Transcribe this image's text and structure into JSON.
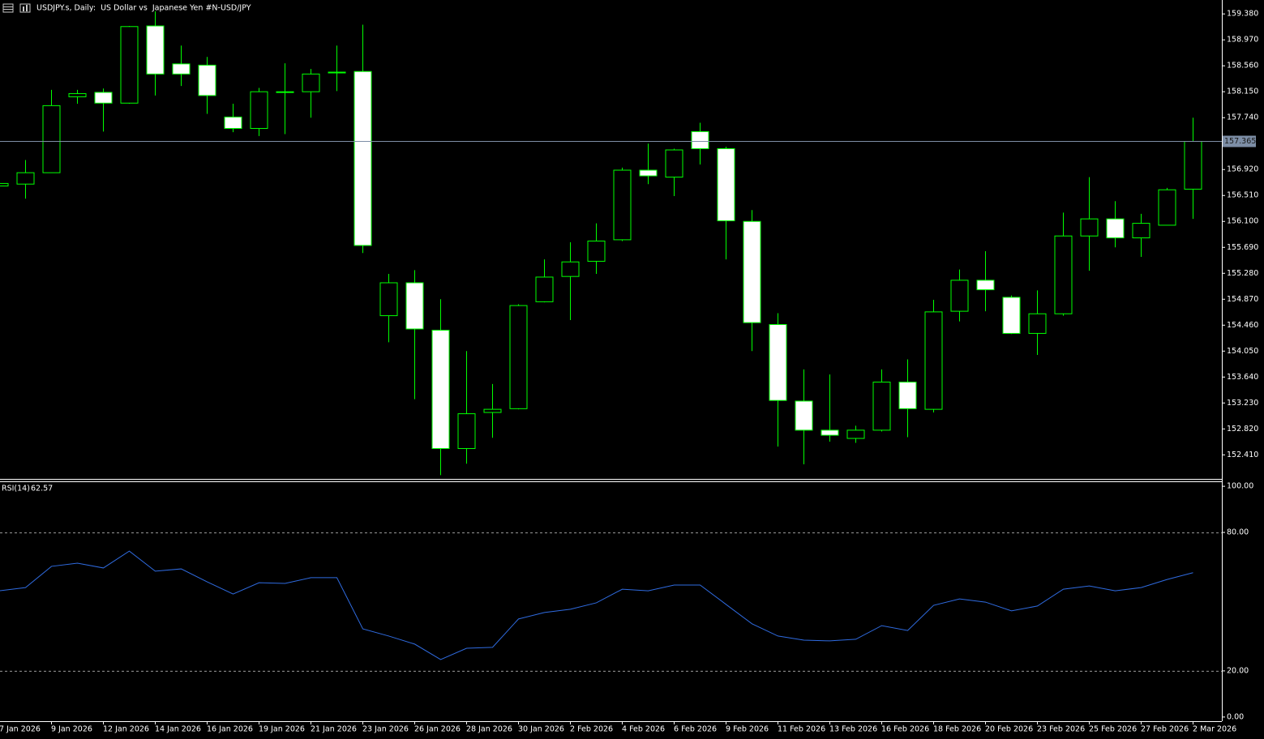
{
  "chart_data": [
    {
      "type": "candlestick",
      "title": "USDJPY.s, Daily:  US Dollar vs  Japanese Yen #N-USD/JPY",
      "open": [
        156.66,
        156.69,
        156.87,
        158.07,
        158.14,
        157.97,
        159.19,
        158.59,
        158.57,
        157.75,
        157.57,
        158.14,
        158.15,
        158.45,
        158.47,
        154.61,
        155.13,
        154.38,
        152.51,
        153.08,
        153.14,
        154.83,
        155.23,
        155.47,
        155.81,
        156.91,
        156.8,
        157.52,
        157.25,
        156.1,
        154.47,
        153.26,
        152.8,
        152.67,
        152.8,
        153.56,
        153.13,
        154.68,
        155.17,
        154.9,
        154.33,
        154.64,
        155.87,
        156.14,
        155.84,
        156.04,
        156.61
      ],
      "high": [
        156.73,
        157.07,
        158.18,
        158.18,
        158.2,
        159.19,
        159.42,
        158.88,
        158.7,
        157.96,
        158.21,
        158.6,
        158.51,
        158.88,
        159.21,
        155.27,
        155.33,
        154.87,
        154.05,
        153.53,
        154.79,
        155.5,
        155.77,
        156.07,
        156.95,
        157.33,
        157.25,
        157.66,
        157.28,
        156.28,
        154.65,
        153.76,
        153.68,
        152.87,
        153.76,
        153.92,
        154.86,
        155.34,
        155.63,
        154.93,
        155.01,
        156.24,
        156.8,
        156.42,
        156.22,
        156.63,
        157.74
      ],
      "low": [
        156.64,
        156.46,
        156.87,
        157.96,
        157.52,
        157.96,
        158.09,
        158.24,
        157.8,
        157.51,
        157.45,
        157.48,
        157.74,
        158.16,
        155.6,
        154.19,
        153.29,
        152.09,
        152.27,
        152.68,
        153.13,
        154.82,
        154.54,
        155.27,
        155.79,
        156.69,
        156.5,
        157.0,
        155.5,
        154.05,
        152.54,
        152.26,
        152.62,
        152.6,
        152.78,
        152.69,
        153.08,
        154.52,
        154.68,
        154.32,
        153.99,
        154.61,
        155.32,
        155.69,
        155.54,
        156.04,
        156.14
      ],
      "close": [
        156.7,
        156.87,
        157.93,
        158.12,
        157.97,
        159.18,
        158.43,
        158.43,
        158.09,
        157.57,
        158.15,
        158.15,
        158.43,
        158.46,
        155.72,
        155.13,
        154.4,
        152.51,
        153.06,
        153.13,
        154.77,
        155.22,
        155.46,
        155.79,
        156.91,
        156.82,
        157.23,
        157.25,
        156.11,
        154.5,
        153.27,
        152.8,
        152.72,
        152.8,
        153.56,
        153.14,
        154.67,
        155.17,
        155.02,
        154.33,
        154.64,
        155.87,
        156.14,
        155.84,
        156.07,
        156.6,
        157.365
      ],
      "up_color": "#000000",
      "down_color": "#ffffff",
      "outline_color": "#00ff00",
      "current_price": 157.365,
      "price_line_color": "#7d8ea6",
      "ylim": [
        152.03,
        159.6
      ],
      "yticks": [
        {
          "value": 159.38,
          "label": "159.380"
        },
        {
          "value": 158.97,
          "label": "158.970"
        },
        {
          "value": 158.56,
          "label": "158.560"
        },
        {
          "value": 158.15,
          "label": "158.150"
        },
        {
          "value": 157.74,
          "label": "157.740"
        },
        {
          "value": 156.92,
          "label": "156.920"
        },
        {
          "value": 156.51,
          "label": "156.510"
        },
        {
          "value": 156.1,
          "label": "156.100"
        },
        {
          "value": 155.69,
          "label": "155.690"
        },
        {
          "value": 155.28,
          "label": "155.280"
        },
        {
          "value": 154.87,
          "label": "154.870"
        },
        {
          "value": 154.46,
          "label": "154.460"
        },
        {
          "value": 154.05,
          "label": "154.050"
        },
        {
          "value": 153.64,
          "label": "153.640"
        },
        {
          "value": 153.23,
          "label": "153.230"
        },
        {
          "value": 152.82,
          "label": "152.820"
        },
        {
          "value": 152.41,
          "label": "152.410"
        }
      ]
    },
    {
      "type": "line",
      "categories": [
        "7 Jan 2026",
        null,
        "9 Jan 2026",
        null,
        "12 Jan 2026",
        null,
        "14 Jan 2026",
        null,
        "16 Jan 2026",
        null,
        "19 Jan 2026",
        null,
        "21 Jan 2026",
        null,
        "23 Jan 2026",
        null,
        "26 Jan 2026",
        null,
        "28 Jan 2026",
        null,
        "30 Jan 2026",
        null,
        "2 Feb 2026",
        null,
        "4 Feb 2026",
        null,
        "6 Feb 2026",
        null,
        "9 Feb 2026",
        null,
        "11 Feb 2026",
        null,
        "13 Feb 2026",
        null,
        "16 Feb 2026",
        null,
        "18 Feb 2026",
        null,
        "20 Feb 2026",
        null,
        "23 Feb 2026",
        null,
        "25 Feb 2026",
        null,
        "27 Feb 2026",
        null,
        "2 Mar 2026"
      ],
      "series": [
        {
          "name": "RSI(14)",
          "color": "#2f6be0",
          "values": [
            54.7,
            56.1,
            65.3,
            66.7,
            64.6,
            71.9,
            63.2,
            64.2,
            58.6,
            53.3,
            58.2,
            57.9,
            60.4,
            60.4,
            38.2,
            35.1,
            31.6,
            24.9,
            29.8,
            30.2,
            42.5,
            45.3,
            46.7,
            49.5,
            55.4,
            54.7,
            57.2,
            57.2,
            48.8,
            40.4,
            35.1,
            33.3,
            33.0,
            33.7,
            39.6,
            37.5,
            48.4,
            51.2,
            49.8,
            46.0,
            48.1,
            55.4,
            56.8,
            54.7,
            56.1,
            59.6,
            62.57
          ]
        }
      ],
      "ylim": [
        -1.8,
        101.8
      ],
      "yticks": [
        {
          "value": 100,
          "label": "100.00"
        },
        {
          "value": 80,
          "label": "80.00"
        },
        {
          "value": 20,
          "label": "20.00"
        },
        {
          "value": 0,
          "label": "0.00"
        }
      ]
    }
  ]
}
